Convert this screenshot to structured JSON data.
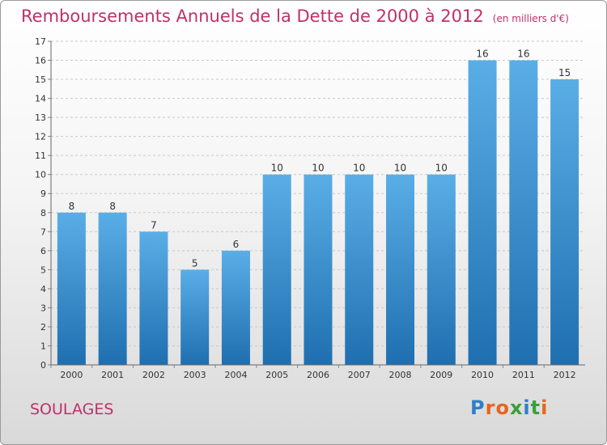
{
  "header": {
    "title": "Remboursements Annuels de la Dette de 2000 à 2012",
    "unit": "(en milliers d'€)"
  },
  "footer": {
    "commune": "SOULAGES",
    "brand": "Proxiti"
  },
  "colors": {
    "title": "#c0306a",
    "bar_top": "#5aaee6",
    "bar_bottom": "#1f6fb0",
    "grid": "#c8c8c8"
  },
  "chart_data": {
    "type": "bar",
    "title": "Remboursements Annuels de la Dette de 2000 à 2012",
    "subtitle": "(en milliers d'€)",
    "xlabel": "",
    "ylabel": "",
    "ylim": [
      0,
      17
    ],
    "yticks": [
      0,
      1,
      2,
      3,
      4,
      5,
      6,
      7,
      8,
      9,
      10,
      11,
      12,
      13,
      14,
      15,
      16,
      17
    ],
    "grid": true,
    "categories": [
      "2000",
      "2001",
      "2002",
      "2003",
      "2004",
      "2005",
      "2006",
      "2007",
      "2008",
      "2009",
      "2010",
      "2011",
      "2012"
    ],
    "values": [
      8,
      8,
      7,
      5,
      6,
      10,
      10,
      10,
      10,
      10,
      16,
      16,
      15
    ]
  }
}
